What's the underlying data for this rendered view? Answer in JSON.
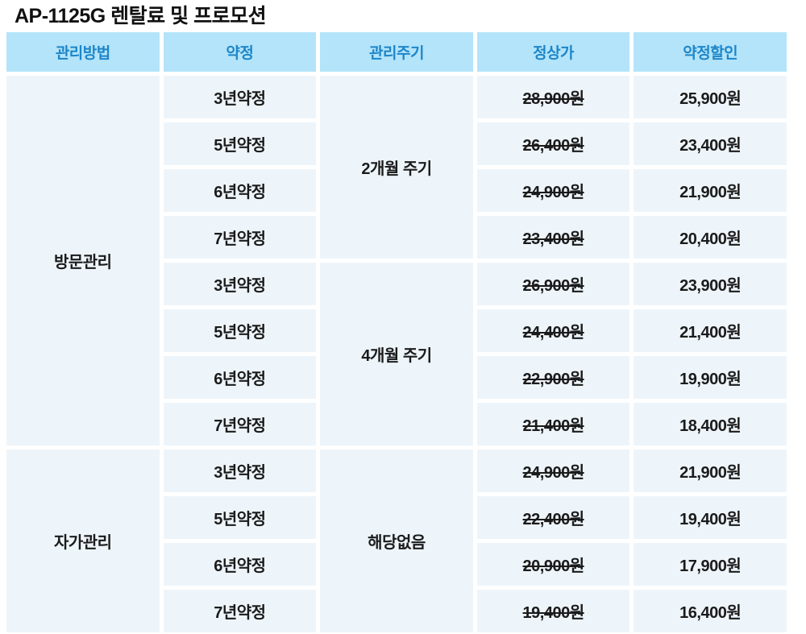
{
  "page": {
    "title": "AP-1125G 렌탈료 및 프로모션"
  },
  "colors": {
    "header_bg": "#b3e4fa",
    "header_text": "#1e86c8",
    "cell_bg": "#eef5fa",
    "body_text": "#1b1b1b"
  },
  "table": {
    "headers": [
      "관리방법",
      "약정",
      "관리주기",
      "정상가",
      "약정할인"
    ],
    "groups": [
      {
        "method": "방문관리",
        "cycles": [
          {
            "cycle": "2개월 주기",
            "rows": [
              {
                "term": "3년약정",
                "original": "28,900원",
                "discount": "25,900원"
              },
              {
                "term": "5년약정",
                "original": "26,400원",
                "discount": "23,400원"
              },
              {
                "term": "6년약정",
                "original": "24,900원",
                "discount": "21,900원"
              },
              {
                "term": "7년약정",
                "original": "23,400원",
                "discount": "20,400원"
              }
            ]
          },
          {
            "cycle": "4개월 주기",
            "rows": [
              {
                "term": "3년약정",
                "original": "26,900원",
                "discount": "23,900원"
              },
              {
                "term": "5년약정",
                "original": "24,400원",
                "discount": "21,400원"
              },
              {
                "term": "6년약정",
                "original": "22,900원",
                "discount": "19,900원"
              },
              {
                "term": "7년약정",
                "original": "21,400원",
                "discount": "18,400원"
              }
            ]
          }
        ]
      },
      {
        "method": "자가관리",
        "cycles": [
          {
            "cycle": "해당없음",
            "rows": [
              {
                "term": "3년약정",
                "original": "24,900원",
                "discount": "21,900원"
              },
              {
                "term": "5년약정",
                "original": "22,400원",
                "discount": "19,400원"
              },
              {
                "term": "6년약정",
                "original": "20,900원",
                "discount": "17,900원"
              },
              {
                "term": "7년약정",
                "original": "19,400원",
                "discount": "16,400원"
              }
            ]
          }
        ]
      }
    ]
  }
}
